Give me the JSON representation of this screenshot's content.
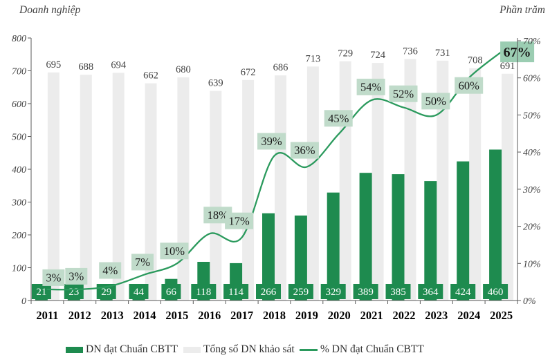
{
  "chart_data": {
    "type": "bar",
    "subtype": "combo-bar-line",
    "categories": [
      "2011",
      "2012",
      "2013",
      "2014",
      "2015",
      "2016",
      "2017",
      "2018",
      "2019",
      "2020",
      "2021",
      "2022",
      "2023",
      "2024",
      "2025"
    ],
    "series": [
      {
        "name": "DN đạt Chuẩn CBTT",
        "type": "bar",
        "axis": "left",
        "color": "#1e8b4f",
        "values": [
          21,
          23,
          29,
          44,
          66,
          118,
          114,
          266,
          259,
          329,
          389,
          385,
          364,
          424,
          460
        ]
      },
      {
        "name": "Tổng số DN khảo sát",
        "type": "bar",
        "axis": "left",
        "color": "#ececec",
        "values": [
          695,
          688,
          694,
          662,
          680,
          639,
          672,
          686,
          713,
          729,
          724,
          736,
          731,
          708,
          691
        ]
      },
      {
        "name": "% DN đạt Chuẩn CBTT",
        "type": "line",
        "axis": "right",
        "color": "#2b9a5d",
        "suffix": "%",
        "values": [
          3,
          3,
          4,
          7,
          10,
          18,
          17,
          39,
          36,
          45,
          54,
          52,
          50,
          60,
          67
        ]
      }
    ],
    "left_axis": {
      "title": "Doanh nghiệp",
      "min": 0,
      "max": 800,
      "step": 100
    },
    "right_axis": {
      "title": "Phần trăm",
      "min": 0,
      "max": 70,
      "step": 10,
      "suffix": "%"
    },
    "legend_position": "bottom",
    "grid": false,
    "colors": {
      "pct_label_bg": "#c0dbca",
      "pct_label_bg_emphasis": "#9bcdb2",
      "pct_label_text": "#1a1a1a",
      "value_label_text": "#ffffff",
      "axis_line": "#595959",
      "tick_text": "#404040",
      "total_label_text": "#404040",
      "year_text": "#000000"
    }
  }
}
